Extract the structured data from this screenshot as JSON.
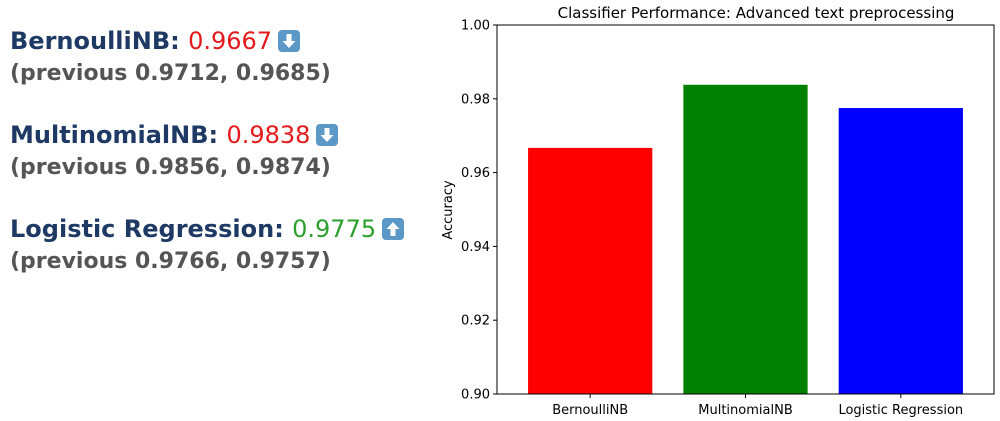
{
  "results": [
    {
      "name": "BernoulliNB",
      "score": "0.9667",
      "trend": "down",
      "score_color": "#e41a1c",
      "previous": "(previous 0.9712, 0.9685)",
      "arrow_icon": "down-arrow-icon"
    },
    {
      "name": "MultinomialNB",
      "score": "0.9838",
      "trend": "down",
      "score_color": "#e41a1c",
      "previous": "(previous 0.9856, 0.9874)",
      "arrow_icon": "down-arrow-icon"
    },
    {
      "name": "Logistic Regression",
      "score": "0.9775",
      "trend": "up",
      "score_color": "#2ca02c",
      "previous": "(previous 0.9766, 0.9757)",
      "arrow_icon": "up-arrow-icon"
    }
  ],
  "chart_data": {
    "type": "bar",
    "title": "Classifier Performance: Advanced text preprocessing",
    "xlabel": "",
    "ylabel": "Accuracy",
    "categories": [
      "BernoulliNB",
      "MultinomialNB",
      "Logistic Regression"
    ],
    "values": [
      0.9667,
      0.9838,
      0.9775
    ],
    "colors": [
      "#ff0000",
      "#008000",
      "#0000ff"
    ],
    "ylim": [
      0.9,
      1.0
    ],
    "yticks": [
      "0.90",
      "0.92",
      "0.94",
      "0.96",
      "0.98",
      "1.00"
    ],
    "grid": false
  }
}
